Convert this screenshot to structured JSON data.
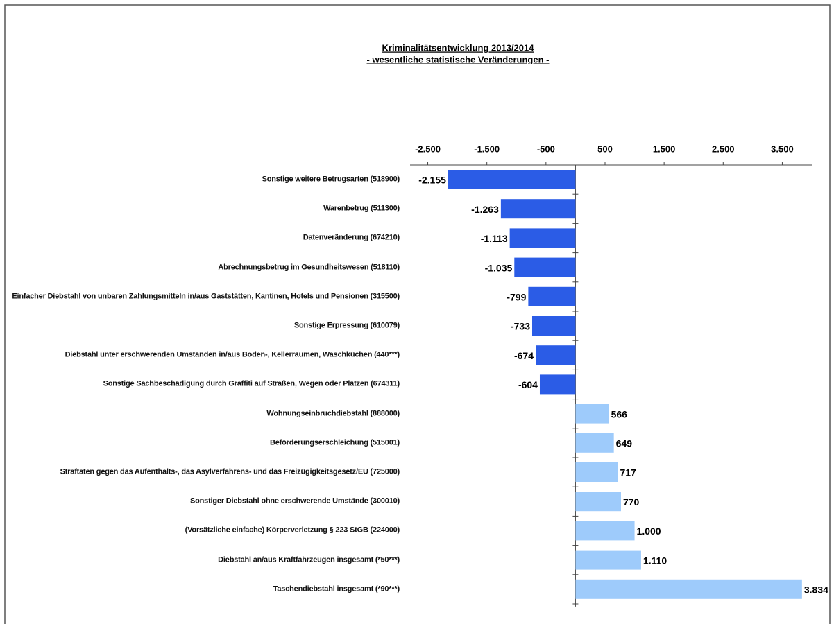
{
  "chart_data": {
    "type": "barh",
    "title": "Kriminalitätsentwicklung  2013/2014",
    "subtitle": "- wesentliche  statistische  Veränderungen  -",
    "categories": [
      "Sonstige weitere Betrugsarten (518900)",
      "Warenbetrug (511300)",
      "Datenveränderung (674210)",
      "Abrechnungsbetrug im Gesundheitswesen (518110)",
      "Einfacher Diebstahl  von unbaren Zahlungsmitteln in/aus Gaststätten, Kantinen, Hotels und Pensionen (315500)",
      "Sonstige Erpressung (610079)",
      "Diebstahl unter erschwerenden Umständen in/aus Boden-, Kellerräumen, Waschküchen (440***)",
      "Sonstige Sachbeschädigung durch Graffiti auf Straßen, Wegen oder Plätzen (674311)",
      "Wohnungseinbruchdiebstahl (888000)",
      "Beförderungserschleichung (515001)",
      "Straftaten gegen das Aufenthalts-, das Asylverfahrens- und das Freizügigkeitsgesetz/EU (725000)",
      "Sonstiger Diebstahl ohne erschwerende Umstände (300010)",
      "(Vorsätzliche einfache) Körperverletzung § 223 StGB (224000)",
      "Diebstahl an/aus Kraftfahrzeugen insgesamt (*50***)",
      "Taschendiebstahl insgesamt (*90***)"
    ],
    "values": [
      -2155,
      -1263,
      -1113,
      -1035,
      -799,
      -733,
      -674,
      -604,
      566,
      649,
      717,
      770,
      1000,
      1110,
      3834
    ],
    "value_labels": [
      "-2.155",
      "-1.263",
      "-1.113",
      "-1.035",
      "-799",
      "-733",
      "-674",
      "-604",
      "566",
      "649",
      "717",
      "770",
      "1.000",
      "1.110",
      "3.834"
    ],
    "colors": [
      "#2b5ce6",
      "#2b5ce6",
      "#2b5ce6",
      "#2b5ce6",
      "#2b5ce6",
      "#2b5ce6",
      "#2b5ce6",
      "#2b5ce6",
      "#9ecbfb",
      "#9ecbfb",
      "#9ecbfb",
      "#9ecbfb",
      "#9ecbfb",
      "#9ecbfb",
      "#9ecbfb"
    ],
    "xlim": [
      -2800,
      4000
    ],
    "xticks": [
      {
        "value": -2500,
        "label": "-2.500"
      },
      {
        "value": -1500,
        "label": "-1.500"
      },
      -500,
      500,
      {
        "value": 1500,
        "label": "1.500"
      },
      {
        "value": 2500,
        "label": "2.500"
      },
      {
        "value": 3500,
        "label": "3.500"
      }
    ]
  }
}
